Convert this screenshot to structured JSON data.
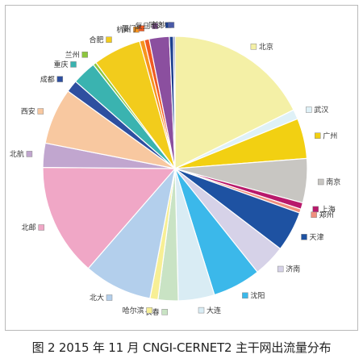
{
  "caption": "图 2 2015 年 11 月 CNGI-CERNET2 主干网出流量分布",
  "chart_data": {
    "type": "pie",
    "title": "",
    "slices": [
      {
        "label": "北京",
        "value": 18.0,
        "color": "#f4f0a6"
      },
      {
        "label": "武汉",
        "value": 1.2,
        "color": "#dff1f7"
      },
      {
        "label": "广州",
        "value": 5.0,
        "color": "#f2d012"
      },
      {
        "label": "南京",
        "value": 5.5,
        "color": "#c8c6c2"
      },
      {
        "label": "上海",
        "value": 0.8,
        "color": "#b8196b"
      },
      {
        "label": "郑州",
        "value": 0.5,
        "color": "#ef8f7e"
      },
      {
        "label": "天津",
        "value": 5.0,
        "color": "#1e52a2"
      },
      {
        "label": "济南",
        "value": 4.0,
        "color": "#d6d2e8"
      },
      {
        "label": "沈阳",
        "value": 6.0,
        "color": "#3bb8ea"
      },
      {
        "label": "大连",
        "value": 4.5,
        "color": "#d9ecf4"
      },
      {
        "label": "长春",
        "value": 2.5,
        "color": "#c9e3c4"
      },
      {
        "label": "哈尔滨",
        "value": 1.0,
        "color": "#f7ef95"
      },
      {
        "label": "北大",
        "value": 8.5,
        "color": "#b3cfec"
      },
      {
        "label": "北邮",
        "value": 14.0,
        "color": "#f0a7c6"
      },
      {
        "label": "北航",
        "value": 3.0,
        "color": "#c1a6cf"
      },
      {
        "label": "西安",
        "value": 7.0,
        "color": "#f8c8a0"
      },
      {
        "label": "成都",
        "value": 1.5,
        "color": "#2e4fa0"
      },
      {
        "label": "重庆",
        "value": 3.0,
        "color": "#3ab3b0"
      },
      {
        "label": "兰州",
        "value": 0.4,
        "color": "#8dc63f"
      },
      {
        "label": "合肥",
        "value": 6.0,
        "color": "#f2cc1c"
      },
      {
        "label": "杭州",
        "value": 0.6,
        "color": "#f7941d"
      },
      {
        "label": "厦门",
        "value": 0.6,
        "color": "#f15a22"
      },
      {
        "label": "复旦",
        "value": 2.5,
        "color": "#8b4f9f"
      },
      {
        "label": "同济",
        "value": 0.5,
        "color": "#1b3f8f"
      },
      {
        "label": "长沙",
        "value": 0.2,
        "color": "#4a5aa8"
      }
    ]
  }
}
